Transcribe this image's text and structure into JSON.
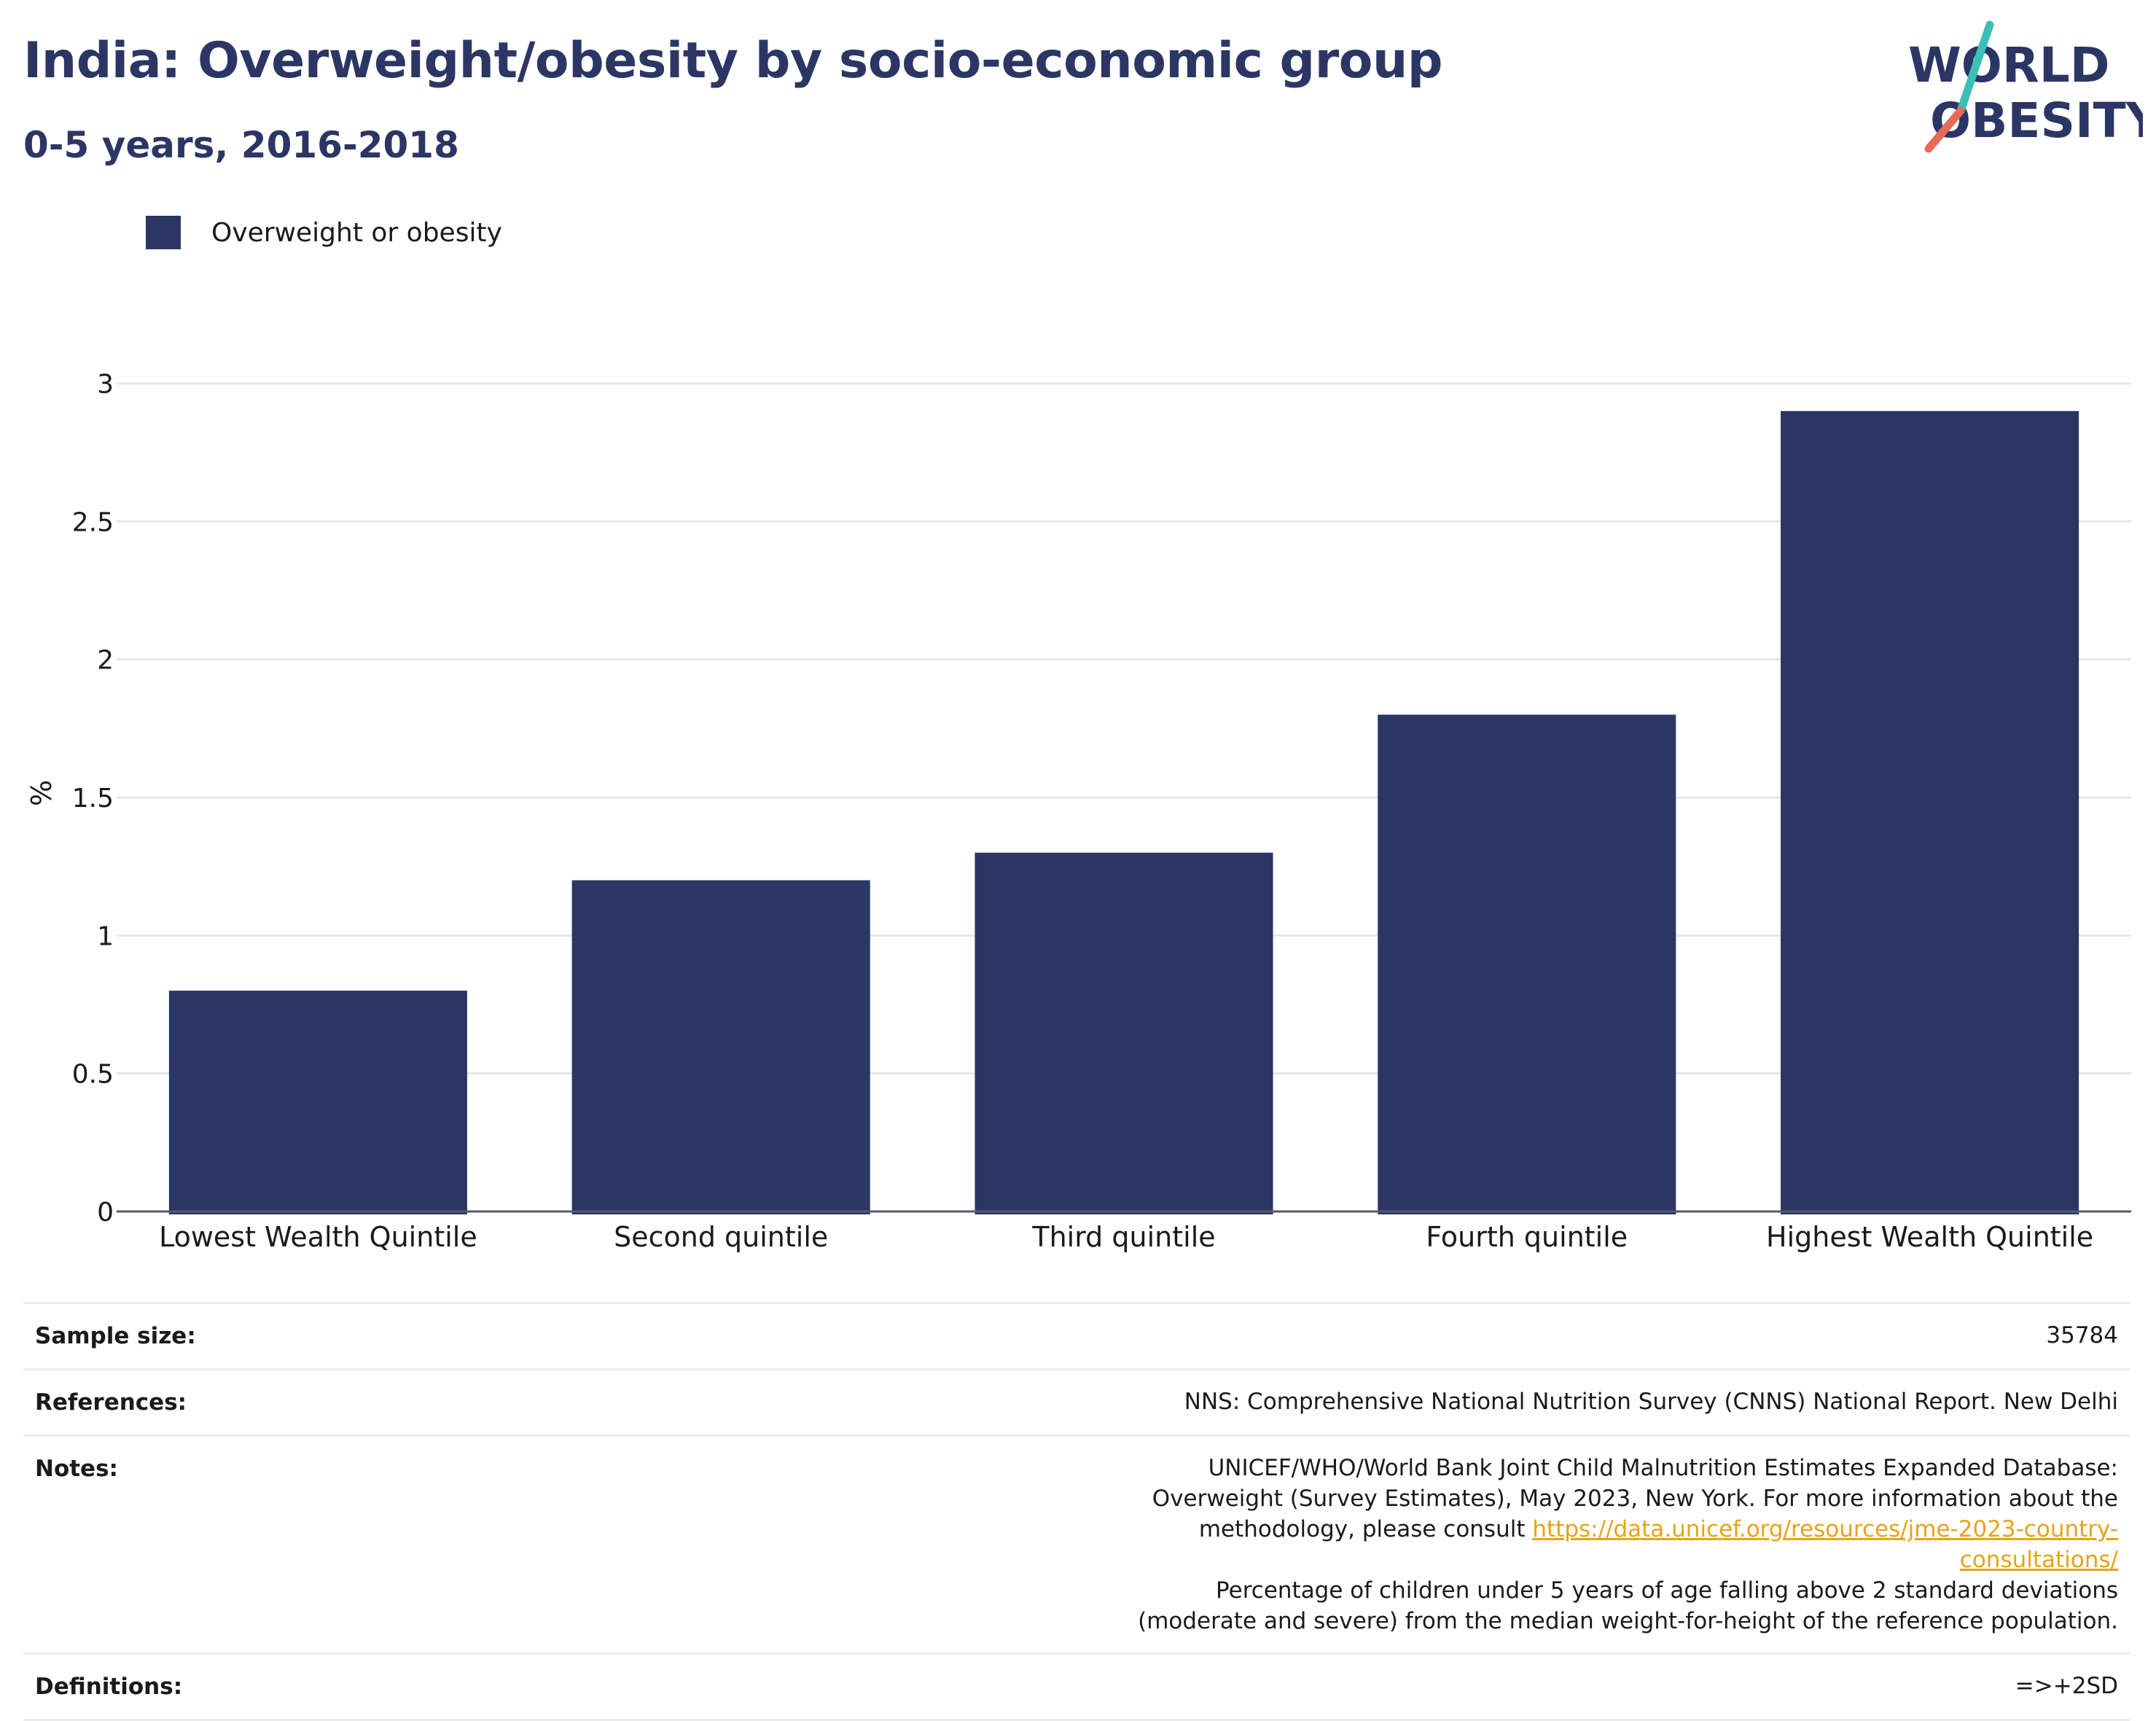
{
  "header": {
    "title": "India: Overweight/obesity by socio-economic group",
    "subtitle": "0-5 years, 2016-2018"
  },
  "logo": {
    "line1": "WORLD",
    "line2": "OBESITY",
    "colors": {
      "text": "#2b3664",
      "slash_teal": "#3bbfb6",
      "slash_coral": "#e8685a"
    }
  },
  "legend": {
    "items": [
      {
        "label": "Overweight or obesity",
        "color": "#2b3664"
      }
    ]
  },
  "chart_data": {
    "type": "bar",
    "categories": [
      "Lowest Wealth Quintile",
      "Second quintile",
      "Third quintile",
      "Fourth quintile",
      "Highest Wealth Quintile"
    ],
    "series": [
      {
        "name": "Overweight or obesity",
        "values": [
          0.8,
          1.2,
          1.3,
          1.8,
          2.9
        ],
        "color": "#2b3664"
      }
    ],
    "ylabel": "%",
    "xlabel": "",
    "ylim": [
      0,
      3
    ],
    "yticks": [
      0,
      0.5,
      1,
      1.5,
      2,
      2.5,
      3
    ],
    "ytick_labels": [
      "0",
      "0.5",
      "1",
      "1.5",
      "2",
      "2.5",
      "3"
    ],
    "grid": true,
    "legend_position": "top-left"
  },
  "info": {
    "sample_size": {
      "label": "Sample size:",
      "value": "35784"
    },
    "references": {
      "label": "References:",
      "value": "NNS: Comprehensive National Nutrition Survey (CNNS) National Report. New Delhi"
    },
    "notes": {
      "label": "Notes:",
      "text_before_link": "UNICEF/WHO/World Bank Joint Child Malnutrition Estimates Expanded Database: Overweight (Survey Estimates), May 2023, New York. For more information about the methodology, please consult ",
      "link_text": "https://data.unicef.org/resources/jme-2023-country-consultations/",
      "text_after_link": "Percentage of children under 5 years of age falling above 2 standard deviations (moderate and severe) from the median weight-for-height of the reference population."
    },
    "definitions": {
      "label": "Definitions:",
      "value": "=>+2SD"
    }
  }
}
